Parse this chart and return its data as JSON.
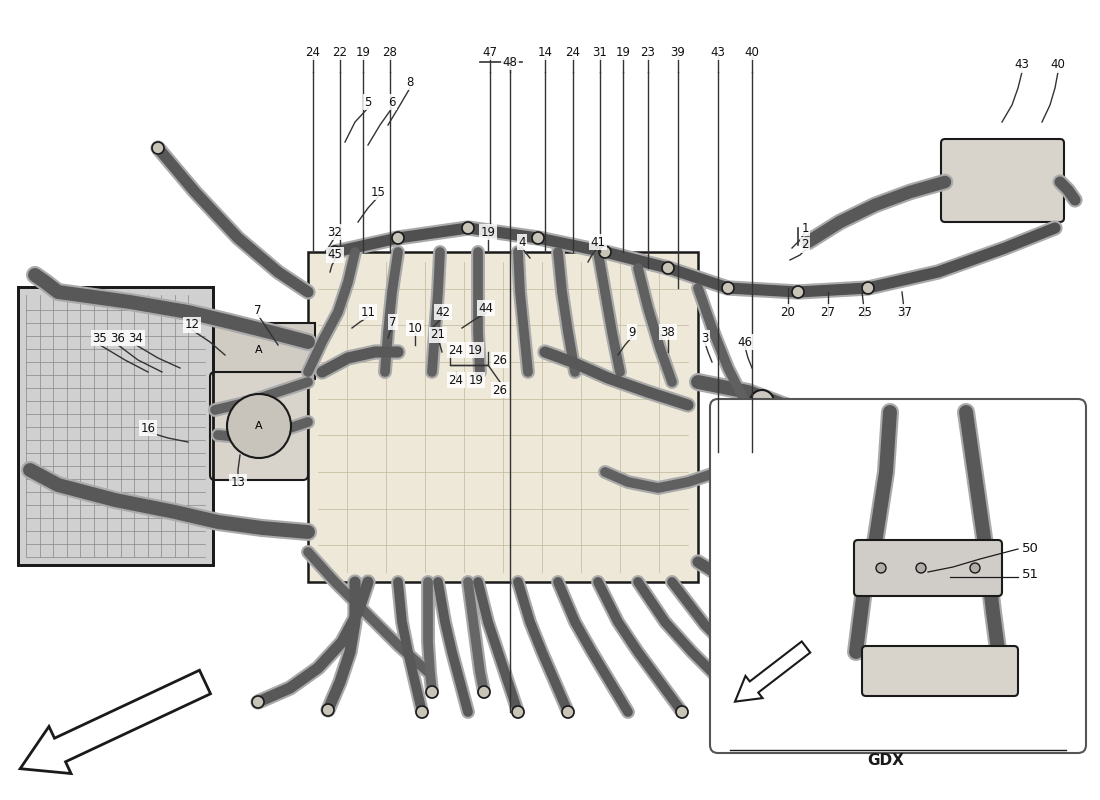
{
  "background_color": "#ffffff",
  "line_color": "#1a1a1a",
  "hose_color": "#505050",
  "engine_fill": "#ede8d8",
  "radiator_fill": "#d0d0d0",
  "watermark_color": "#c8b850",
  "watermark_alpha": 0.45,
  "label_fontsize": 8.5,
  "label_color": "#111111",
  "inset_label": "GDX",
  "gdx_fontsize": 11,
  "part_labels": [
    [
      490,
      748,
      "47"
    ],
    [
      510,
      738,
      "48"
    ],
    [
      545,
      748,
      "14"
    ],
    [
      573,
      748,
      "24"
    ],
    [
      600,
      748,
      "31"
    ],
    [
      623,
      748,
      "19"
    ],
    [
      648,
      748,
      "23"
    ],
    [
      678,
      748,
      "39"
    ],
    [
      718,
      748,
      "43"
    ],
    [
      752,
      748,
      "40"
    ],
    [
      313,
      748,
      "24"
    ],
    [
      340,
      748,
      "22"
    ],
    [
      363,
      748,
      "19"
    ],
    [
      390,
      748,
      "28"
    ],
    [
      100,
      462,
      "35"
    ],
    [
      118,
      462,
      "36"
    ],
    [
      136,
      462,
      "34"
    ],
    [
      192,
      475,
      "12"
    ],
    [
      148,
      372,
      "16"
    ],
    [
      238,
      318,
      "13"
    ],
    [
      258,
      490,
      "7"
    ],
    [
      378,
      608,
      "15"
    ],
    [
      335,
      568,
      "32"
    ],
    [
      335,
      545,
      "45"
    ],
    [
      488,
      568,
      "19"
    ],
    [
      522,
      558,
      "4"
    ],
    [
      486,
      492,
      "44"
    ],
    [
      443,
      488,
      "42"
    ],
    [
      368,
      488,
      "11"
    ],
    [
      393,
      478,
      "7"
    ],
    [
      415,
      472,
      "10"
    ],
    [
      438,
      465,
      "21"
    ],
    [
      456,
      450,
      "24"
    ],
    [
      475,
      450,
      "19"
    ],
    [
      500,
      440,
      "26"
    ],
    [
      368,
      698,
      "5"
    ],
    [
      392,
      698,
      "6"
    ],
    [
      410,
      718,
      "8"
    ],
    [
      632,
      468,
      "9"
    ],
    [
      668,
      468,
      "38"
    ],
    [
      705,
      462,
      "3"
    ],
    [
      745,
      458,
      "46"
    ],
    [
      598,
      558,
      "41"
    ],
    [
      788,
      488,
      "20"
    ],
    [
      828,
      488,
      "27"
    ],
    [
      865,
      488,
      "25"
    ],
    [
      905,
      488,
      "37"
    ],
    [
      805,
      572,
      "1"
    ],
    [
      805,
      555,
      "2"
    ]
  ]
}
